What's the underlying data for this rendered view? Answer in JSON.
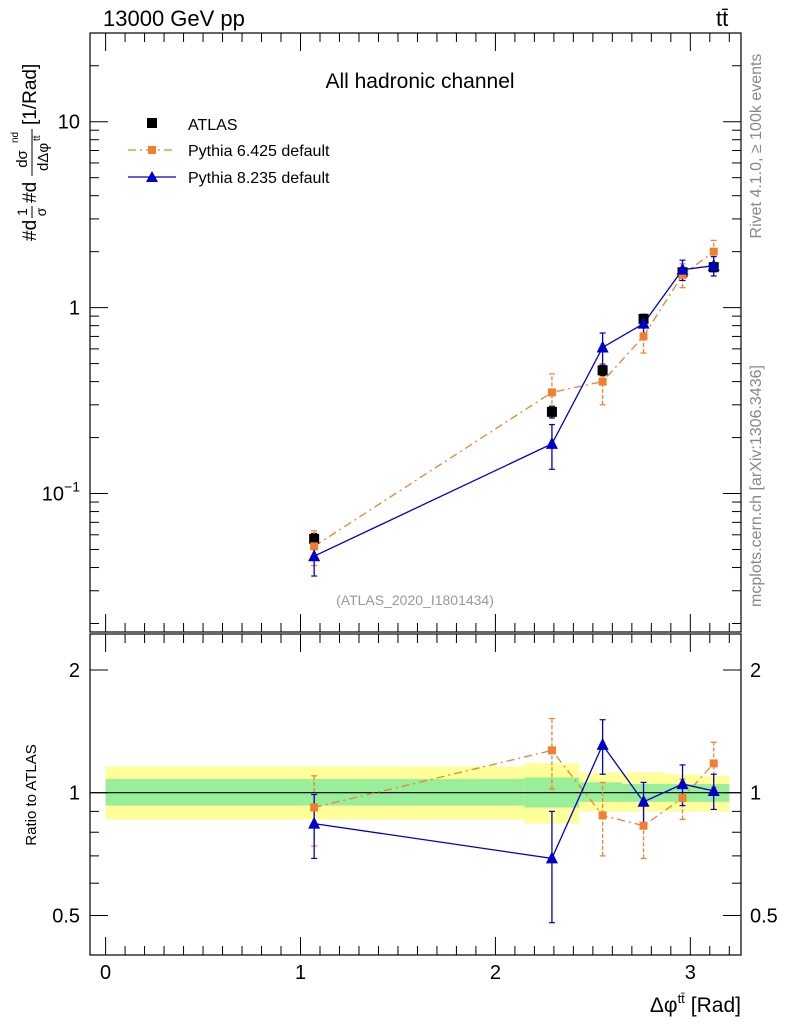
{
  "header": {
    "energy_label": "13000 GeV pp",
    "process_label": "tt̄"
  },
  "side": {
    "rivet_label": "Rivet 4.1.0, ≥ 100k events",
    "mcplots_label": "mcplots.cern.ch [arXiv:1306.3436]"
  },
  "chart_data": [
    {
      "type": "scatter",
      "title": "All hadronic channel",
      "analysis_tag": "(ATLAS_2020_I1801434)",
      "ylabel": "#d1/σ#dσ^{nd}/dΔφ^{tt̄} [1/Rad]",
      "ylabel_parts": {
        "lead": "#d",
        "f1_num": "1",
        "f1_den": "σ",
        "mid": "#d",
        "f2_num": "dσ",
        "f2_sup": "nd",
        "f2_den": "dΔφ",
        "f2_den_sup": "tt̄",
        "unit": "[1/Rad]"
      },
      "yscale": "log",
      "ylim": [
        0.018,
        30
      ],
      "xlim": [
        -0.08,
        3.26
      ],
      "y_ticks": [
        {
          "value": 0.1,
          "base": "10",
          "exp": "−1"
        },
        {
          "value": 1,
          "label": "1"
        },
        {
          "value": 10,
          "label": "10"
        }
      ],
      "legend": {
        "position": "top-left",
        "entries": [
          {
            "name": "ATLAS",
            "marker": "square",
            "line": "none"
          },
          {
            "name": "Pythia 6.425 default",
            "marker": "square",
            "line": "dash-dot"
          },
          {
            "name": "Pythia 8.235 default",
            "marker": "triangle",
            "line": "solid"
          }
        ]
      },
      "series": [
        {
          "name": "ATLAS",
          "color": "#000000",
          "marker": "square",
          "x": [
            1.07,
            2.29,
            2.55,
            2.76,
            2.96,
            3.12
          ],
          "y": [
            0.057,
            0.275,
            0.46,
            0.87,
            1.55,
            1.65
          ],
          "yerr": [
            0.004,
            0.02,
            0.03,
            0.05,
            0.08,
            0.09
          ]
        },
        {
          "name": "Pythia 6.425 default",
          "color": "#f08030",
          "marker": "square",
          "dash": "8,4,2,4",
          "x": [
            1.07,
            2.29,
            2.55,
            2.76,
            2.96,
            3.12
          ],
          "y": [
            0.052,
            0.35,
            0.4,
            0.7,
            1.5,
            2.0
          ],
          "yerr_lo": [
            0.011,
            0.09,
            0.1,
            0.13,
            0.22,
            0.3
          ],
          "yerr_hi": [
            0.011,
            0.09,
            0.1,
            0.13,
            0.22,
            0.3
          ]
        },
        {
          "name": "Pythia 8.235 default",
          "color": "#0000cc",
          "marker": "triangle",
          "x": [
            1.07,
            2.29,
            2.55,
            2.76,
            2.96,
            3.12
          ],
          "y": [
            0.046,
            0.185,
            0.61,
            0.82,
            1.6,
            1.68
          ],
          "yerr_lo": [
            0.01,
            0.05,
            0.12,
            0.1,
            0.2,
            0.2
          ],
          "yerr_hi": [
            0.01,
            0.05,
            0.12,
            0.1,
            0.2,
            0.2
          ]
        }
      ]
    },
    {
      "type": "scatter",
      "title": "",
      "ylabel": "Ratio to ATLAS",
      "xlabel": "Δφ^{tt̄} [Rad]",
      "xlabel_parts": {
        "main": "Δφ",
        "sup": "tt̄",
        "unit": "[Rad]"
      },
      "yscale": "log",
      "ylim": [
        0.4,
        2.45
      ],
      "xlim": [
        -0.08,
        3.26
      ],
      "x_ticks": [
        0,
        1,
        2,
        3
      ],
      "y_ticks": [
        0.5,
        1,
        2
      ],
      "bands": [
        {
          "x0": 0.0,
          "x1": 2.15,
          "lo": 0.86,
          "hi": 1.16,
          "inner_lo": 0.93,
          "inner_hi": 1.08
        },
        {
          "x0": 2.15,
          "x1": 2.43,
          "lo": 0.84,
          "hi": 1.18,
          "inner_lo": 0.92,
          "inner_hi": 1.09
        },
        {
          "x0": 2.43,
          "x1": 2.65,
          "lo": 0.9,
          "hi": 1.12,
          "inner_lo": 0.95,
          "inner_hi": 1.06
        },
        {
          "x0": 2.65,
          "x1": 2.87,
          "lo": 0.9,
          "hi": 1.12,
          "inner_lo": 0.95,
          "inner_hi": 1.05
        },
        {
          "x0": 2.87,
          "x1": 3.05,
          "lo": 0.9,
          "hi": 1.11,
          "inner_lo": 0.95,
          "inner_hi": 1.05
        },
        {
          "x0": 3.05,
          "x1": 3.2,
          "lo": 0.9,
          "hi": 1.1,
          "inner_lo": 0.95,
          "inner_hi": 1.05
        }
      ],
      "series": [
        {
          "name": "Pythia 6.425 default",
          "color": "#f08030",
          "marker": "square",
          "dash": "8,4,2,4",
          "x": [
            1.07,
            2.29,
            2.55,
            2.76,
            2.96,
            3.12
          ],
          "y": [
            0.92,
            1.27,
            0.88,
            0.83,
            0.97,
            1.18
          ],
          "yerr_lo": [
            0.18,
            0.25,
            0.18,
            0.14,
            0.11,
            0.15
          ],
          "yerr_hi": [
            0.18,
            0.25,
            0.18,
            0.14,
            0.11,
            0.15
          ]
        },
        {
          "name": "Pythia 8.235 default",
          "color": "#0000cc",
          "marker": "triangle",
          "x": [
            1.07,
            2.29,
            2.55,
            2.76,
            2.96,
            3.12
          ],
          "y": [
            0.84,
            0.69,
            1.31,
            0.95,
            1.05,
            1.01
          ],
          "yerr_lo": [
            0.15,
            0.21,
            0.2,
            0.11,
            0.12,
            0.1
          ],
          "yerr_hi": [
            0.15,
            0.21,
            0.2,
            0.11,
            0.12,
            0.1
          ]
        }
      ]
    }
  ]
}
